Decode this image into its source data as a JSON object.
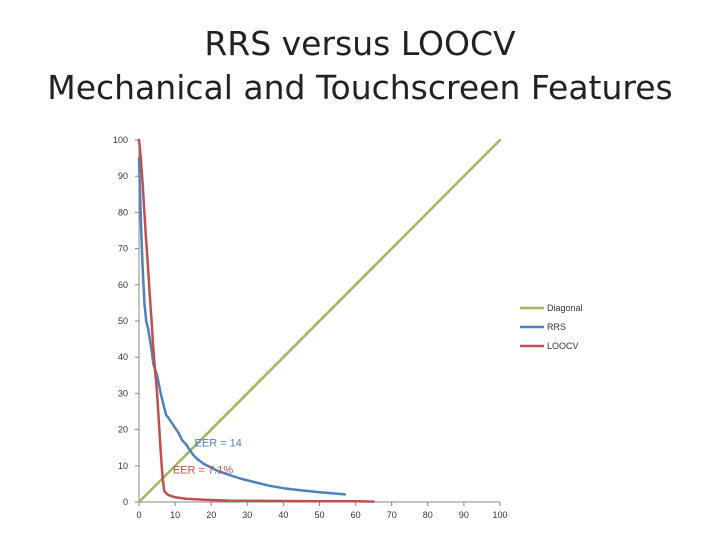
{
  "slide": {
    "title_line1": "RRS versus LOOCV",
    "title_line2": "Mechanical and Touchscreen Features"
  },
  "chart_data": {
    "type": "line",
    "title": "RRS versus LOOCV Mechanical and Touchscreen Features",
    "xlabel": "",
    "ylabel": "",
    "xlim": [
      0,
      100
    ],
    "ylim": [
      0,
      100
    ],
    "xticks": [
      0,
      10,
      20,
      30,
      40,
      50,
      60,
      70,
      80,
      90,
      100
    ],
    "yticks": [
      0,
      10,
      20,
      30,
      40,
      50,
      60,
      70,
      80,
      90,
      100
    ],
    "grid": false,
    "legend_position": "right",
    "series": [
      {
        "name": "Diagonal",
        "color": "#9bbb59",
        "points": [
          [
            0,
            0
          ],
          [
            100,
            100
          ]
        ]
      },
      {
        "name": "RRS",
        "color": "#4f81bd",
        "points": [
          [
            0,
            95
          ],
          [
            0.3,
            85
          ],
          [
            0.6,
            75
          ],
          [
            1,
            65
          ],
          [
            1.5,
            55
          ],
          [
            2,
            50
          ],
          [
            2.5,
            48
          ],
          [
            3,
            45
          ],
          [
            3.5,
            42
          ],
          [
            4,
            38
          ],
          [
            5,
            35
          ],
          [
            6,
            30
          ],
          [
            6.5,
            28
          ],
          [
            7,
            26
          ],
          [
            7.5,
            24
          ],
          [
            8,
            23.5
          ],
          [
            9,
            22
          ],
          [
            10,
            20.5
          ],
          [
            11,
            19
          ],
          [
            12,
            17
          ],
          [
            13,
            16
          ],
          [
            14,
            14.5
          ],
          [
            15,
            13
          ],
          [
            16,
            12
          ],
          [
            18,
            10.5
          ],
          [
            20,
            9.5
          ],
          [
            22,
            8.5
          ],
          [
            25,
            7.5
          ],
          [
            28,
            6.5
          ],
          [
            32,
            5.5
          ],
          [
            36,
            4.5
          ],
          [
            40,
            3.8
          ],
          [
            45,
            3.2
          ],
          [
            50,
            2.7
          ],
          [
            55,
            2.3
          ],
          [
            57,
            2.1
          ]
        ]
      },
      {
        "name": "LOOCV",
        "color": "#c0504d",
        "points": [
          [
            0,
            100
          ],
          [
            0.5,
            95
          ],
          [
            1,
            88
          ],
          [
            1.5,
            80
          ],
          [
            2,
            72
          ],
          [
            2.5,
            65
          ],
          [
            3,
            57
          ],
          [
            3.5,
            50
          ],
          [
            4,
            42
          ],
          [
            4.5,
            36
          ],
          [
            5,
            30
          ],
          [
            5.5,
            22
          ],
          [
            6,
            14
          ],
          [
            6.5,
            7
          ],
          [
            7,
            3
          ],
          [
            8,
            2
          ],
          [
            10,
            1.3
          ],
          [
            13,
            0.9
          ],
          [
            18,
            0.6
          ],
          [
            25,
            0.4
          ],
          [
            35,
            0.3
          ],
          [
            50,
            0.2
          ],
          [
            60,
            0.2
          ],
          [
            65,
            0.1
          ]
        ]
      }
    ],
    "annotations": [
      {
        "text": "EER = 14",
        "x": 14,
        "y": 14,
        "color": "#4f81bd"
      },
      {
        "text": "EER = 7.1%",
        "x": 8,
        "y": 6.5,
        "color": "#c0504d"
      }
    ]
  }
}
